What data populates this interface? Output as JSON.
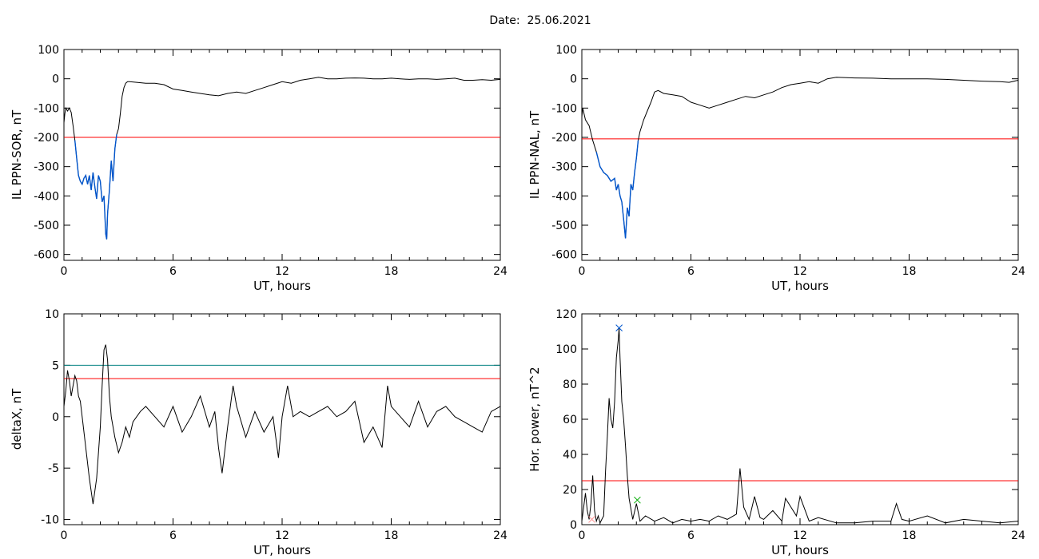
{
  "header": {
    "date_label": "Date:  25.06.2021"
  },
  "chart_data": [
    {
      "id": "il-sor",
      "type": "line",
      "ylabel": "IL PPN-SOR, nT",
      "xlabel": "UT, hours",
      "xlim": [
        0,
        24
      ],
      "ylim": [
        -620,
        100
      ],
      "xticks": [
        0,
        6,
        12,
        18,
        24
      ],
      "yticks": [
        100,
        0,
        -100,
        -200,
        -300,
        -400,
        -500,
        -600
      ],
      "grid": false,
      "threshold": {
        "value": -200,
        "color": "#ff0000"
      },
      "highlight": {
        "from": 0.55,
        "to": 2.95,
        "color": "#0055cc"
      },
      "series": [
        {
          "color": "#000000",
          "x": [
            0,
            0.05,
            0.1,
            0.2,
            0.3,
            0.4,
            0.5,
            0.6,
            0.7,
            0.8,
            0.9,
            1.0,
            1.1,
            1.2,
            1.3,
            1.4,
            1.5,
            1.6,
            1.7,
            1.8,
            1.9,
            2.0,
            2.1,
            2.2,
            2.3,
            2.35,
            2.4,
            2.5,
            2.6,
            2.7,
            2.8,
            2.9,
            3.0,
            3.1,
            3.2,
            3.3,
            3.4,
            3.5,
            3.6,
            4.0,
            4.5,
            5.0,
            5.5,
            6.0,
            6.5,
            7.0,
            7.5,
            8.0,
            8.5,
            9.0,
            9.5,
            10.0,
            10.5,
            11.0,
            11.5,
            12.0,
            12.5,
            13.0,
            13.5,
            14.0,
            14.5,
            15.0,
            15.5,
            16.0,
            16.5,
            17.0,
            17.5,
            18.0,
            18.5,
            19.0,
            19.5,
            20.0,
            20.5,
            21.0,
            21.5,
            22.0,
            22.5,
            23.0,
            23.5,
            24.0
          ],
          "y": [
            -150,
            -120,
            -100,
            -110,
            -100,
            -115,
            -160,
            -210,
            -270,
            -330,
            -350,
            -360,
            -340,
            -330,
            -360,
            -330,
            -380,
            -320,
            -370,
            -410,
            -330,
            -350,
            -420,
            -400,
            -530,
            -548,
            -460,
            -380,
            -280,
            -350,
            -240,
            -190,
            -170,
            -120,
            -60,
            -30,
            -15,
            -10,
            -10,
            -12,
            -15,
            -15,
            -20,
            -35,
            -40,
            -45,
            -50,
            -55,
            -58,
            -50,
            -45,
            -50,
            -40,
            -30,
            -20,
            -10,
            -15,
            -5,
            0,
            5,
            0,
            0,
            2,
            3,
            2,
            0,
            0,
            2,
            0,
            -2,
            0,
            0,
            -2,
            0,
            2,
            -5,
            -5,
            -3,
            -5,
            -2
          ]
        }
      ]
    },
    {
      "id": "il-nal",
      "type": "line",
      "ylabel": "IL PPN-NAL, nT",
      "xlabel": "UT, hours",
      "xlim": [
        0,
        24
      ],
      "ylim": [
        -620,
        100
      ],
      "xticks": [
        0,
        6,
        12,
        18,
        24
      ],
      "yticks": [
        100,
        0,
        -100,
        -200,
        -300,
        -400,
        -500,
        -600
      ],
      "grid": false,
      "threshold": {
        "value": -205,
        "color": "#ff0000"
      },
      "highlight": {
        "from": 0.7,
        "to": 3.1,
        "color": "#0055cc"
      },
      "series": [
        {
          "color": "#000000",
          "x": [
            0,
            0.05,
            0.2,
            0.4,
            0.6,
            0.8,
            1.0,
            1.2,
            1.4,
            1.6,
            1.8,
            1.9,
            2.0,
            2.1,
            2.2,
            2.3,
            2.4,
            2.5,
            2.6,
            2.7,
            2.8,
            2.9,
            3.0,
            3.1,
            3.2,
            3.4,
            3.6,
            3.8,
            4.0,
            4.2,
            4.5,
            5.0,
            5.5,
            6.0,
            6.5,
            7.0,
            7.5,
            8.0,
            8.5,
            9.0,
            9.5,
            10.0,
            10.5,
            11.0,
            11.5,
            12.0,
            12.5,
            13.0,
            13.5,
            14.0,
            15.0,
            16.0,
            17.0,
            18.0,
            19.0,
            20.0,
            21.0,
            22.0,
            23.0,
            23.5,
            24.0
          ],
          "y": [
            -130,
            -100,
            -140,
            -160,
            -210,
            -250,
            -300,
            -320,
            -330,
            -350,
            -340,
            -380,
            -360,
            -400,
            -420,
            -480,
            -545,
            -440,
            -470,
            -360,
            -380,
            -320,
            -270,
            -210,
            -180,
            -140,
            -110,
            -80,
            -45,
            -40,
            -50,
            -55,
            -60,
            -80,
            -90,
            -100,
            -90,
            -80,
            -70,
            -60,
            -65,
            -55,
            -45,
            -30,
            -20,
            -15,
            -10,
            -15,
            0,
            5,
            3,
            2,
            0,
            0,
            0,
            -2,
            -5,
            -8,
            -10,
            -12,
            -5
          ]
        }
      ]
    },
    {
      "id": "delta-x",
      "type": "line",
      "ylabel": "deltaX, nT",
      "xlabel": "UT, hours",
      "xlim": [
        0,
        24
      ],
      "ylim": [
        -10.5,
        10
      ],
      "xticks": [
        0,
        6,
        12,
        18,
        24
      ],
      "yticks": [
        10,
        5,
        0,
        -5,
        -10
      ],
      "ytick_labels": [
        "10",
        "5",
        "0",
        "-5",
        "-10"
      ],
      "grid": false,
      "thresholds": [
        {
          "value": 5.0,
          "color": "#008080"
        },
        {
          "value": 3.7,
          "color": "#ff0000"
        }
      ],
      "series": [
        {
          "color": "#000000",
          "x": [
            0,
            0.1,
            0.2,
            0.3,
            0.4,
            0.5,
            0.6,
            0.7,
            0.8,
            0.9,
            1.0,
            1.2,
            1.4,
            1.6,
            1.8,
            2.0,
            2.1,
            2.2,
            2.3,
            2.4,
            2.5,
            2.6,
            2.8,
            3.0,
            3.2,
            3.4,
            3.6,
            3.8,
            4.0,
            4.2,
            4.5,
            5.0,
            5.5,
            6.0,
            6.5,
            7.0,
            7.5,
            8.0,
            8.3,
            8.5,
            8.7,
            9.0,
            9.3,
            9.5,
            10.0,
            10.5,
            11.0,
            11.5,
            11.8,
            12.0,
            12.3,
            12.6,
            13.0,
            13.5,
            14.0,
            14.5,
            15.0,
            15.5,
            16.0,
            16.5,
            17.0,
            17.5,
            17.8,
            18.0,
            18.5,
            19.0,
            19.5,
            20.0,
            20.5,
            21.0,
            21.5,
            22.0,
            22.5,
            23.0,
            23.5,
            24.0
          ],
          "y": [
            1.0,
            2.5,
            4.5,
            3.5,
            2.0,
            3.0,
            4.0,
            3.5,
            2.0,
            1.5,
            0.0,
            -3.0,
            -6.0,
            -8.5,
            -6.0,
            -1.0,
            3.0,
            6.5,
            7.0,
            5.5,
            2.0,
            0.0,
            -2.0,
            -3.5,
            -2.5,
            -1.0,
            -2.0,
            -0.5,
            0.0,
            0.5,
            1.0,
            0.0,
            -1.0,
            1.0,
            -1.5,
            0.0,
            2.0,
            -1.0,
            0.5,
            -3.0,
            -5.5,
            -1.0,
            3.0,
            1.0,
            -2.0,
            0.5,
            -1.5,
            0.0,
            -4.0,
            0.0,
            3.0,
            0.0,
            0.5,
            0.0,
            0.5,
            1.0,
            0.0,
            0.5,
            1.5,
            -2.5,
            -1.0,
            -3.0,
            3.0,
            1.0,
            0.0,
            -1.0,
            1.5,
            -1.0,
            0.5,
            1.0,
            0.0,
            -0.5,
            -1.0,
            -1.5,
            0.5,
            1.0
          ]
        }
      ]
    },
    {
      "id": "hor-power",
      "type": "line",
      "ylabel": "Hor. power, nT^2",
      "xlabel": "UT, hours",
      "xlim": [
        0,
        24
      ],
      "ylim": [
        0,
        120
      ],
      "xticks": [
        0,
        6,
        12,
        18,
        24
      ],
      "yticks": [
        120,
        100,
        80,
        60,
        40,
        20,
        0
      ],
      "grid": false,
      "threshold": {
        "value": 25,
        "color": "#ff0000"
      },
      "markers": [
        {
          "x": 2.05,
          "y": 112,
          "color": "#0055cc",
          "symbol": "x"
        },
        {
          "x": 0.55,
          "y": 3,
          "color": "#ff9999",
          "symbol": "x"
        },
        {
          "x": 3.05,
          "y": 14,
          "color": "#00aa00",
          "symbol": "x"
        }
      ],
      "series": [
        {
          "color": "#000000",
          "x": [
            0,
            0.1,
            0.2,
            0.3,
            0.4,
            0.5,
            0.6,
            0.7,
            0.8,
            0.9,
            1.0,
            1.1,
            1.2,
            1.3,
            1.4,
            1.5,
            1.6,
            1.7,
            1.8,
            1.9,
            2.0,
            2.05,
            2.1,
            2.2,
            2.3,
            2.4,
            2.5,
            2.6,
            2.8,
            3.0,
            3.2,
            3.5,
            4.0,
            4.5,
            5.0,
            5.5,
            6.0,
            6.5,
            7.0,
            7.5,
            8.0,
            8.5,
            8.7,
            8.9,
            9.2,
            9.5,
            9.8,
            10.0,
            10.5,
            11.0,
            11.2,
            11.5,
            11.8,
            12.0,
            12.5,
            13.0,
            14.0,
            15.0,
            16.0,
            17.0,
            17.3,
            17.6,
            18.0,
            19.0,
            20.0,
            21.0,
            22.0,
            23.0,
            24.0
          ],
          "y": [
            2,
            10,
            18,
            8,
            3,
            12,
            28,
            8,
            2,
            5,
            1,
            3,
            5,
            30,
            50,
            72,
            60,
            55,
            70,
            95,
            105,
            112,
            95,
            70,
            60,
            45,
            28,
            15,
            3,
            12,
            2,
            5,
            2,
            4,
            1,
            3,
            2,
            3,
            2,
            5,
            3,
            6,
            32,
            10,
            3,
            16,
            4,
            3,
            8,
            2,
            15,
            10,
            5,
            16,
            2,
            4,
            1,
            1,
            2,
            2,
            12,
            3,
            2,
            5,
            1,
            3,
            2,
            1,
            2
          ]
        }
      ]
    }
  ]
}
